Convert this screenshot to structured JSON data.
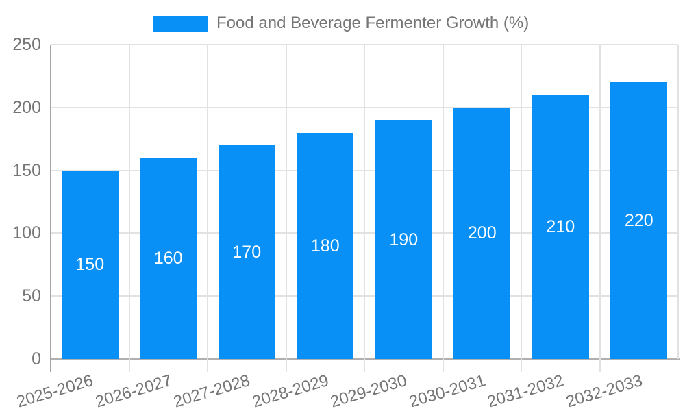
{
  "chart_data": {
    "type": "bar",
    "title": "Food and Beverage Fermenter Growth (%)",
    "categories": [
      "2025-2026",
      "2026-2027",
      "2027-2028",
      "2028-2029",
      "2029-2030",
      "2030-2031",
      "2031-2032",
      "2032-2033"
    ],
    "values": [
      150,
      160,
      170,
      180,
      190,
      200,
      210,
      220
    ],
    "xlabel": "",
    "ylabel": "",
    "ylim": [
      0,
      250
    ],
    "yticks": [
      0,
      50,
      100,
      150,
      200,
      250
    ],
    "grid": true,
    "legend_position": "top",
    "bar_labels_shown": true,
    "colors": {
      "bar": "#0890f6",
      "bar_label": "#ffffff",
      "axis_text": "#757575",
      "legend_text": "#757575",
      "gridline": "#e2e2e2",
      "axis_line": "#a6a6a6",
      "baseline": "#b0b0b0",
      "background": "#ffffff"
    }
  }
}
